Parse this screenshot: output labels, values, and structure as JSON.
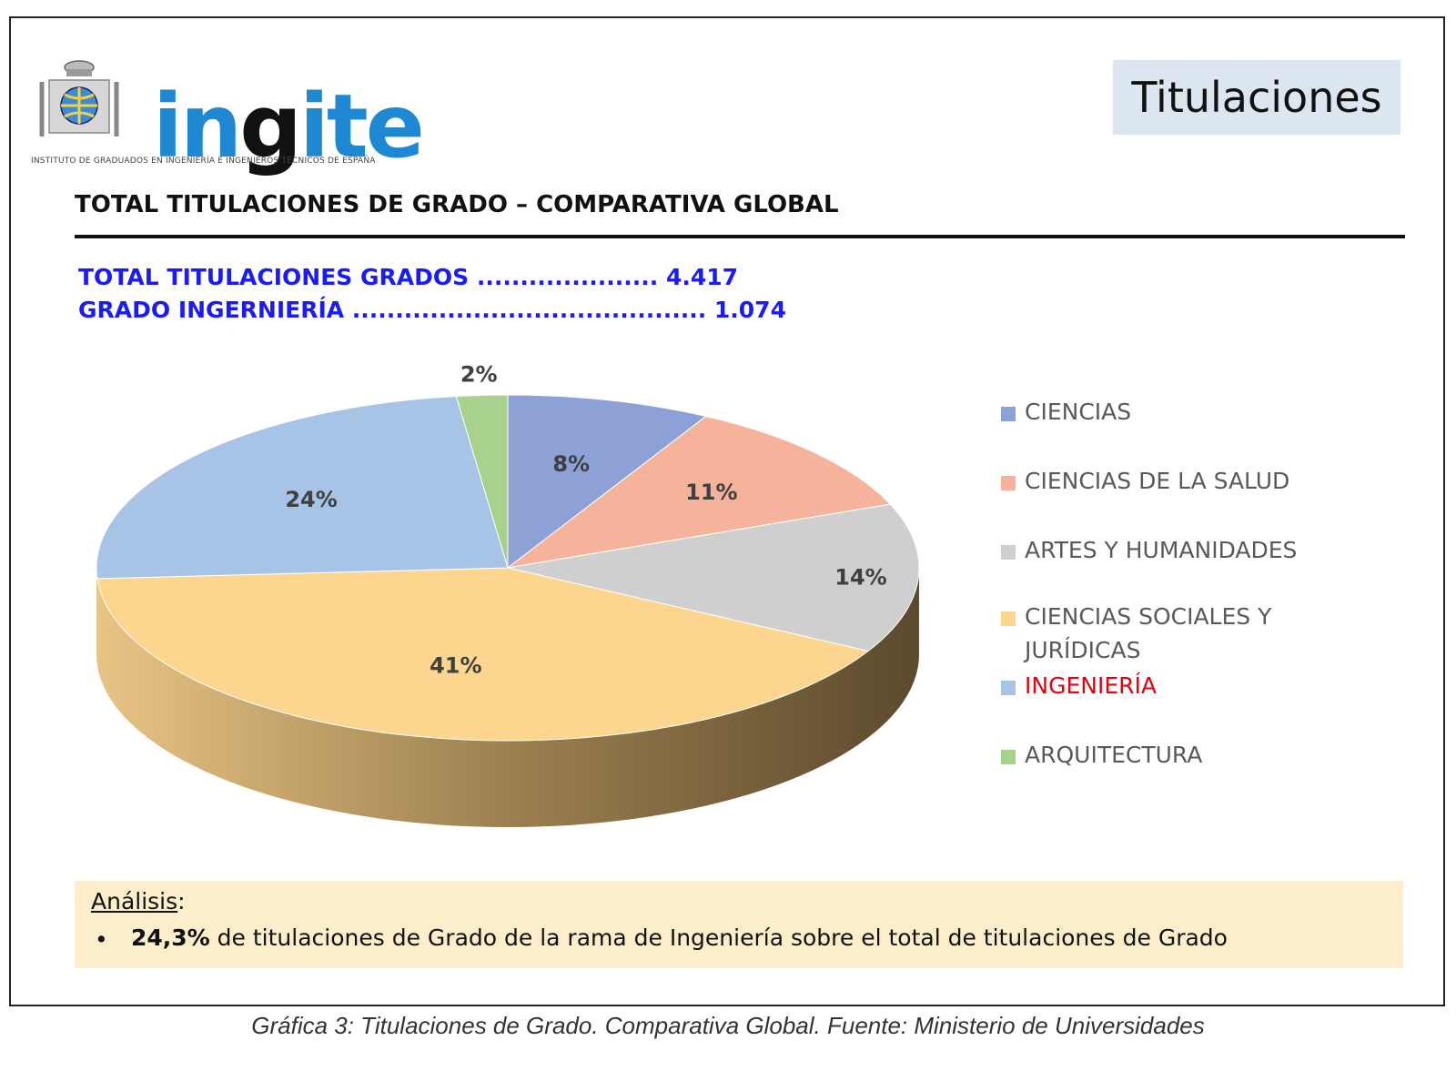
{
  "header": {
    "logo_text_part1": "in",
    "logo_text_part2": "g",
    "logo_text_part3": "ite",
    "logo_subtitle": "INSTITUTO DE GRADUADOS EN INGENIERÍA E INGENIEROS TÉCNICOS DE ESPAÑA",
    "section_label": "Titulaciones"
  },
  "title": "TOTAL TITULACIONES DE GRADO – COMPARATIVA GLOBAL",
  "stats": [
    {
      "label": "TOTAL TITULACIONES GRADOS ..................... 4.417"
    },
    {
      "label": "GRADO INGERNIERÍA ......................................... 1.074"
    }
  ],
  "chart_data": {
    "type": "pie",
    "categories": [
      "CIENCIAS",
      "CIENCIAS DE LA SALUD",
      "ARTES Y HUMANIDADES",
      "CIENCIAS SOCIALES Y JURÍDICAS",
      "INGENIERÍA",
      "ARQUITECTURA"
    ],
    "values": [
      8,
      11,
      14,
      41,
      24,
      2
    ],
    "value_labels": [
      "8%",
      "11%",
      "14%",
      "41%",
      "24%",
      "2%"
    ],
    "colors": [
      "#8ea1d7",
      "#f4b39a",
      "#cfcfcf",
      "#fcd58e",
      "#a7c3e6",
      "#a9d18e"
    ],
    "legend_placement": "right",
    "highlighted_category": "INGENIERÍA",
    "highlight_color": "#e8000f",
    "style": "3d"
  },
  "legend": [
    {
      "label": "CIENCIAS"
    },
    {
      "label": "CIENCIAS DE LA SALUD"
    },
    {
      "label": "ARTES Y HUMANIDADES"
    },
    {
      "label": "CIENCIAS SOCIALES Y JURÍDICAS"
    },
    {
      "label": "INGENIERÍA"
    },
    {
      "label": "ARQUITECTURA"
    }
  ],
  "analysis": {
    "heading": "Análisis",
    "heading_suffix": ":",
    "bullet": "•",
    "bold_part": "24,3%",
    "text": " de titulaciones de Grado de la rama de Ingeniería sobre el total de titulaciones de Grado"
  },
  "caption": "Gráfica 3: Titulaciones de Grado. Comparativa Global. Fuente: Ministerio de Universidades"
}
